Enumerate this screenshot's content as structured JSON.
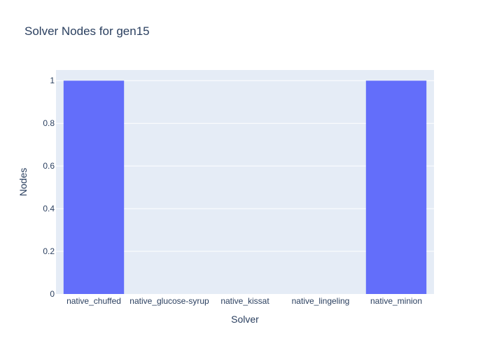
{
  "chart_data": {
    "type": "bar",
    "title": "Solver Nodes for gen15",
    "xlabel": "Solver",
    "ylabel": "Nodes",
    "categories": [
      "native_chuffed",
      "native_glucose-syrup",
      "native_kissat",
      "native_lingeling",
      "native_minion"
    ],
    "values": [
      1,
      0,
      0,
      0,
      1
    ],
    "ylim": [
      0,
      1.05
    ],
    "yticks": [
      0,
      0.2,
      0.4,
      0.6,
      0.8,
      1
    ],
    "ytick_labels": [
      "0",
      "0.2",
      "0.4",
      "0.6",
      "0.8",
      "1"
    ],
    "grid": true,
    "legend": false,
    "colors": {
      "bar": "#636efa",
      "plot_background": "#e5ecf6",
      "grid": "#ffffff",
      "text": "#2a3f5f"
    }
  }
}
